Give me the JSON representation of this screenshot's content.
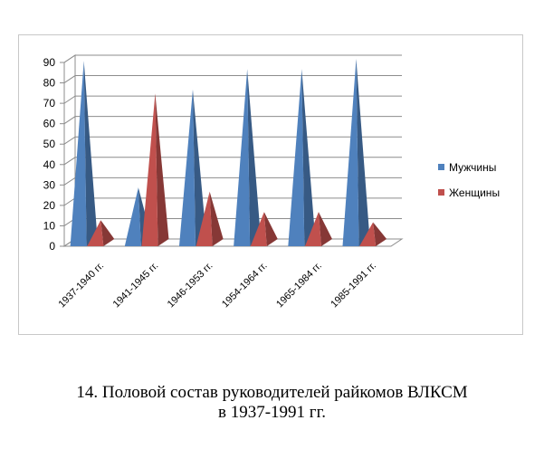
{
  "chart_data": {
    "type": "bar",
    "bar_shape": "3d-pyramid",
    "title": "",
    "xlabel": "",
    "ylabel": "",
    "ylim": [
      0,
      90
    ],
    "yticks": [
      0,
      10,
      20,
      30,
      40,
      50,
      60,
      70,
      80,
      90
    ],
    "grid": true,
    "legend_position": "right",
    "categories": [
      "1937-1940  гг.",
      "1941-1945  гг.",
      "1946-1953  гг.",
      "1954-1964  гг.",
      "1965-1984  гг.",
      "1985-1991  гг."
    ],
    "series": [
      {
        "name": "Мужчины",
        "color": "#4f81bd",
        "values": [
          89,
          27,
          75,
          85,
          85,
          90
        ]
      },
      {
        "name": "Женщины",
        "color": "#c0504d",
        "values": [
          11,
          73,
          25,
          15,
          15,
          10
        ]
      }
    ]
  },
  "caption": {
    "line1": "14. Половой состав руководителей райкомов ВЛКСМ",
    "line2": "в 1937-1991 гг."
  }
}
